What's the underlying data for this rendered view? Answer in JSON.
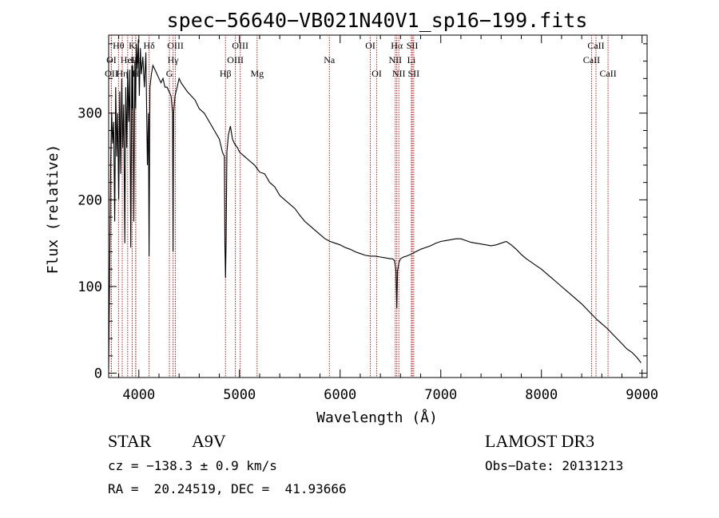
{
  "chart_data": {
    "type": "line",
    "title": "spec−56640−VB021N40V1_sp16−199.fits",
    "xlabel": "Wavelength (Å)",
    "ylabel": "Flux (relative)",
    "xlim": [
      3700,
      9050
    ],
    "ylim": [
      -5,
      390
    ],
    "xticks": [
      4000,
      5000,
      6000,
      7000,
      8000,
      9000
    ],
    "yticks": [
      0,
      100,
      200,
      300
    ],
    "series": [
      {
        "name": "spectrum",
        "x": [
          3700,
          3710,
          3720,
          3730,
          3740,
          3750,
          3760,
          3770,
          3780,
          3790,
          3800,
          3810,
          3820,
          3830,
          3840,
          3850,
          3860,
          3870,
          3880,
          3890,
          3900,
          3910,
          3920,
          3930,
          3934,
          3940,
          3950,
          3960,
          3968,
          3975,
          3985,
          3995,
          4005,
          4015,
          4025,
          4040,
          4055,
          4070,
          4085,
          4095,
          4102,
          4110,
          4125,
          4140,
          4160,
          4180,
          4200,
          4220,
          4240,
          4260,
          4280,
          4300,
          4320,
          4335,
          4340,
          4345,
          4360,
          4380,
          4400,
          4420,
          4450,
          4480,
          4520,
          4560,
          4600,
          4650,
          4700,
          4750,
          4800,
          4830,
          4850,
          4855,
          4861,
          4867,
          4875,
          4890,
          4910,
          4930,
          4950,
          4980,
          5000,
          5050,
          5100,
          5150,
          5200,
          5250,
          5300,
          5350,
          5400,
          5450,
          5500,
          5550,
          5600,
          5650,
          5700,
          5750,
          5800,
          5850,
          5900,
          5950,
          6000,
          6050,
          6100,
          6150,
          6200,
          6250,
          6300,
          6350,
          6400,
          6450,
          6500,
          6520,
          6540,
          6555,
          6563,
          6570,
          6585,
          6600,
          6630,
          6660,
          6700,
          6750,
          6800,
          6850,
          6900,
          6950,
          7000,
          7050,
          7100,
          7150,
          7200,
          7250,
          7300,
          7350,
          7400,
          7450,
          7500,
          7550,
          7600,
          7650,
          7700,
          7750,
          7800,
          7850,
          7900,
          7950,
          8000,
          8050,
          8100,
          8150,
          8200,
          8250,
          8300,
          8350,
          8400,
          8450,
          8500,
          8550,
          8600,
          8650,
          8700,
          8750,
          8800,
          8850,
          8900,
          8950,
          8990
        ],
        "y": [
          5,
          120,
          240,
          300,
          265,
          290,
          175,
          330,
          250,
          300,
          200,
          325,
          230,
          340,
          260,
          310,
          150,
          330,
          260,
          350,
          290,
          350,
          145,
          355,
          305,
          355,
          175,
          360,
          305,
          380,
          350,
          385,
          320,
          375,
          345,
          365,
          330,
          370,
          240,
          300,
          135,
          330,
          345,
          355,
          350,
          345,
          340,
          335,
          340,
          330,
          330,
          325,
          320,
          300,
          140,
          300,
          320,
          330,
          340,
          335,
          330,
          325,
          320,
          315,
          305,
          300,
          290,
          280,
          270,
          255,
          250,
          150,
          110,
          150,
          255,
          275,
          285,
          270,
          265,
          260,
          255,
          250,
          245,
          240,
          232,
          230,
          220,
          215,
          205,
          200,
          195,
          190,
          182,
          175,
          170,
          165,
          160,
          155,
          152,
          150,
          148,
          145,
          143,
          140,
          138,
          136,
          135,
          135,
          134,
          133,
          132,
          132,
          130,
          118,
          75,
          118,
          128,
          132,
          134,
          135,
          137,
          140,
          143,
          145,
          147,
          150,
          152,
          153,
          154,
          155,
          155,
          153,
          151,
          150,
          149,
          148,
          147,
          148,
          150,
          152,
          148,
          143,
          137,
          132,
          128,
          124,
          120,
          115,
          110,
          105,
          100,
          95,
          90,
          85,
          80,
          74,
          68,
          62,
          57,
          52,
          46,
          40,
          34,
          28,
          24,
          18,
          12
        ]
      }
    ],
    "lines": [
      {
        "label": "Hθ",
        "x": 3798,
        "row": 1
      },
      {
        "label": "K",
        "x": 3934,
        "row": 1
      },
      {
        "label": "Hδ",
        "x": 4102,
        "row": 1
      },
      {
        "label": "OIII",
        "x": 4363,
        "row": 1
      },
      {
        "label": "OIII",
        "x": 5007,
        "row": 1
      },
      {
        "label": "OI",
        "x": 6300,
        "row": 1
      },
      {
        "label": "Hα",
        "x": 6563,
        "row": 1
      },
      {
        "label": "SII",
        "x": 6717,
        "row": 1
      },
      {
        "label": "CaII",
        "x": 8542,
        "row": 1
      },
      {
        "label": "OI",
        "x": 3727,
        "row": 2
      },
      {
        "label": "HeI",
        "x": 3889,
        "row": 2
      },
      {
        "label": "Hε",
        "x": 3970,
        "row": 2
      },
      {
        "label": "Hγ",
        "x": 4340,
        "row": 2
      },
      {
        "label": "OIII",
        "x": 4959,
        "row": 2
      },
      {
        "label": "Na",
        "x": 5893,
        "row": 2
      },
      {
        "label": "NII",
        "x": 6548,
        "row": 2
      },
      {
        "label": "Li",
        "x": 6708,
        "row": 2
      },
      {
        "label": "CaII",
        "x": 8498,
        "row": 2
      },
      {
        "label": "OII",
        "x": 3727,
        "row": 3
      },
      {
        "label": "Hη",
        "x": 3835,
        "row": 3
      },
      {
        "label": "H",
        "x": 3968,
        "row": 3
      },
      {
        "label": "G",
        "x": 4304,
        "row": 3
      },
      {
        "label": "Hβ",
        "x": 4861,
        "row": 3
      },
      {
        "label": "Mg",
        "x": 5175,
        "row": 3
      },
      {
        "label": "OI",
        "x": 6364,
        "row": 3
      },
      {
        "label": "NII",
        "x": 6583,
        "row": 3
      },
      {
        "label": "SII",
        "x": 6731,
        "row": 3
      },
      {
        "label": "CaII",
        "x": 8662,
        "row": 3
      }
    ],
    "line_color": "#b22222"
  },
  "info": {
    "class_label": "STAR",
    "subclass": "A9V",
    "survey": "LAMOST DR3",
    "cz_text": "cz = −138.3 ± 0.9 km/s",
    "date_text": "Obs−Date: 20131213",
    "coords_text": "RA =  20.24519, DEC =  41.93666"
  }
}
